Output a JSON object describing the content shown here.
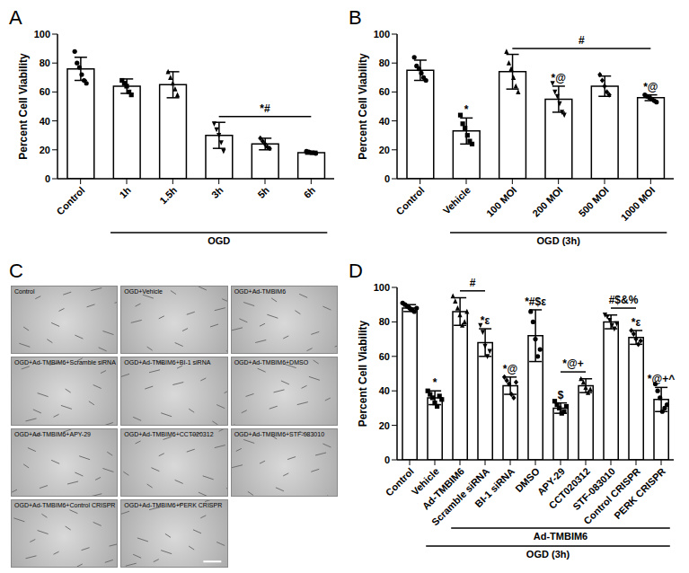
{
  "chart_data": [
    {
      "type": "bar",
      "title": "A",
      "y_label": "Percent Cell Viability",
      "categories": [
        "Control",
        "1h",
        "1.5h",
        "3h",
        "5h",
        "6h"
      ],
      "values": [
        76,
        64,
        65,
        30,
        24,
        18
      ],
      "errors": [
        8,
        5,
        9,
        9,
        4,
        1
      ],
      "points": [
        [
          88,
          80,
          77,
          72,
          68,
          66
        ],
        [
          68,
          66,
          64,
          60,
          58
        ],
        [
          74,
          70,
          66,
          62,
          58
        ],
        [
          38,
          34,
          30,
          25,
          19
        ],
        [
          28,
          26,
          24,
          22,
          21
        ],
        [
          19,
          18.5,
          18,
          18,
          17.5
        ]
      ],
      "annotations": [
        null,
        null,
        null,
        null,
        null,
        null
      ],
      "brackets": [
        {
          "from": "3h",
          "to": "6h",
          "label": "*#"
        }
      ],
      "groups": [
        {
          "from": "1h",
          "to": "6h",
          "label": "OGD"
        }
      ],
      "color": "#000000",
      "ylim": [
        0,
        100
      ],
      "yticks": [
        0,
        20,
        40,
        60,
        80,
        100
      ],
      "grid": false
    },
    {
      "type": "bar",
      "title": "B",
      "y_label": "Percent Cell Viability",
      "categories": [
        "Control",
        "Vehicle",
        "100 MOI",
        "200 MOI",
        "500 MOI",
        "1000 MOI"
      ],
      "values": [
        75,
        33,
        74,
        55,
        64,
        56
      ],
      "errors": [
        7,
        9,
        12,
        9,
        7,
        2
      ],
      "points": [
        [
          84,
          78,
          76,
          73,
          70,
          68
        ],
        [
          44,
          38,
          35,
          30,
          26,
          24
        ],
        [
          88,
          80,
          76,
          70,
          64,
          60
        ],
        [
          66,
          60,
          57,
          52,
          46,
          44
        ],
        [
          72,
          68,
          64,
          60,
          58
        ],
        [
          58,
          57,
          56,
          55,
          54,
          53
        ]
      ],
      "annotations": [
        null,
        "*",
        null,
        "*@",
        null,
        "*@"
      ],
      "brackets": [
        {
          "from": "100 MOI",
          "to": "1000 MOI",
          "label": "#"
        }
      ],
      "groups": [
        {
          "from": "Vehicle",
          "to": "1000 MOI",
          "label": "OGD (3h)"
        }
      ],
      "color": "#000000",
      "ylim": [
        0,
        100
      ],
      "yticks": [
        0,
        20,
        40,
        60,
        80,
        100
      ],
      "grid": false
    },
    {
      "type": "image_grid",
      "title": "C",
      "labels": [
        "Control",
        "OGD+Vehicle",
        "OGD+Ad-TMBIM6",
        "OGD+Ad-TMBIM6+Scramble siRNA",
        "OGD+Ad-TMBIM6+BI-1 siRNA",
        "OGD+Ad-TMBIM6+DMSO",
        "OGD+Ad-TMBIM6+APY-29",
        "OGD+Ad-TMBIM6+CCT020312",
        "OGD+Ad-TMBIM6+STF-083010",
        "OGD+Ad-TMBIM6+Control CRISPR",
        "OGD+Ad-TMBIM6+PERK CRISPR"
      ]
    },
    {
      "type": "bar",
      "title": "D",
      "y_label": "Percent Cell Viability",
      "categories": [
        "Control",
        "Vehicle",
        "Ad-TMBIM6",
        "Scramble siRNA",
        "BI-1 siRNA",
        "DMSO",
        "APY-29",
        "CCT020312",
        "STF-083010",
        "Control CRISPR",
        "PERK CRISPR"
      ],
      "values": [
        88,
        36,
        86,
        68,
        43,
        72,
        30,
        43,
        80,
        71,
        35
      ],
      "errors": [
        2,
        4,
        8,
        8,
        5,
        15,
        3,
        4,
        4,
        4,
        7
      ],
      "points": [
        [
          91,
          90,
          89,
          88,
          87,
          86,
          88
        ],
        [
          40,
          38,
          36,
          33,
          31,
          37,
          35
        ],
        [
          95,
          92,
          88,
          84,
          78,
          80,
          86
        ],
        [
          78,
          74,
          66,
          60,
          63
        ],
        [
          48,
          46,
          44,
          38,
          36,
          45
        ],
        [
          86,
          80,
          70,
          60,
          64
        ],
        [
          34,
          32,
          30,
          27,
          28,
          31
        ],
        [
          47,
          45,
          42,
          39,
          41
        ],
        [
          84,
          83,
          81,
          78,
          76,
          79
        ],
        [
          75,
          73,
          70,
          67,
          69
        ],
        [
          44,
          40,
          36,
          28,
          30,
          32
        ]
      ],
      "annotations": [
        null,
        "*",
        null,
        "*ε",
        "*@",
        "*#$ε",
        "$",
        null,
        null,
        "*ε",
        "*@+^"
      ],
      "brackets": [
        {
          "from": "Ad-TMBIM6",
          "to": "Scramble siRNA",
          "label": "#"
        },
        {
          "from": "APY-29",
          "to": "CCT020312",
          "label": "*@+"
        },
        {
          "from": "STF-083010",
          "to": "Control CRISPR",
          "label": "#$&%"
        }
      ],
      "groups": [
        {
          "from": "Ad-TMBIM6",
          "to": "PERK CRISPR",
          "label": "Ad-TMBIM6"
        },
        {
          "from": "Vehicle",
          "to": "PERK CRISPR",
          "label": "OGD (3h)"
        }
      ],
      "color": "#000000",
      "ylim": [
        0,
        100
      ],
      "yticks": [
        0,
        20,
        40,
        60,
        80,
        100
      ],
      "grid": false
    }
  ]
}
